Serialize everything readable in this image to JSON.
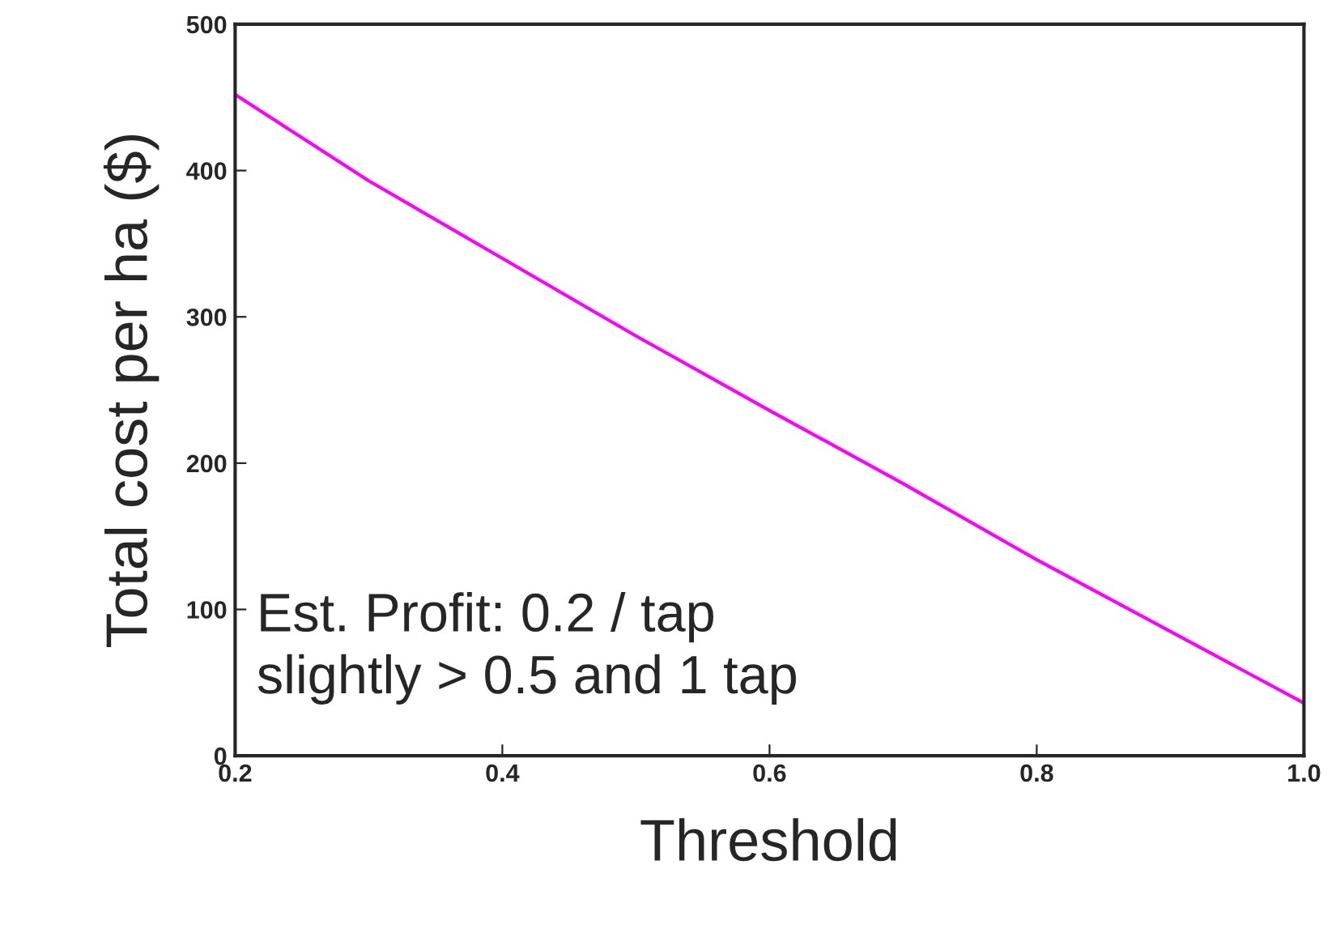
{
  "chart_data": {
    "type": "line",
    "xlabel": "Threshold",
    "ylabel": "Total cost per ha ($)",
    "x": [
      0.2,
      0.3,
      0.4,
      0.5,
      0.6,
      0.7,
      0.8,
      0.9,
      1.0
    ],
    "series": [
      {
        "color": "#ff00ff",
        "values": [
          452,
          393,
          340,
          287,
          236,
          186,
          134,
          85,
          36
        ]
      }
    ],
    "xlim": [
      0.2,
      1.0
    ],
    "xticks": [
      0.2,
      0.4,
      0.6,
      0.8,
      {
        "value": 1,
        "label": "1.0"
      }
    ],
    "ylim": [
      0,
      500
    ],
    "yticks": [
      0,
      100,
      200,
      300,
      400,
      500
    ],
    "grid": false,
    "legend": false,
    "marker": "none",
    "line_style": "solid",
    "annotations": [
      "Est. Profit: 0.2 / tap\nslightly > 0.5 and 1 tap"
    ]
  }
}
